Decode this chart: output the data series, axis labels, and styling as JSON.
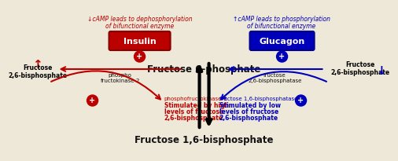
{
  "bg_color": "#ede8d8",
  "red_color": "#bb0000",
  "blue_color": "#0000bb",
  "dark_color": "#111111",
  "f6p_label": "Fructose 6-phosphate",
  "f16bp_label": "Fructose 1,6-bisphosphate",
  "insulin_label": "Insulin",
  "glucagon_label": "Glucagon",
  "left_fruct_label": "Fructose\n2,6-bisphosphate",
  "right_fruct_label": "Fructose\n2,6-bisphosphate",
  "camp_left_1": "↓cAMP leads to dephosphorylation",
  "camp_left_2": "of bifunctional enzyme",
  "camp_right_1": "↑cAMP leads to phosphorylation",
  "camp_right_2": "of bifunctional enzyme",
  "phospho_label": "phospho\nfructokinase-2",
  "fruct_bisphosphatase_label": "fructose\n2,6-bisphosphatase",
  "pfk1_line1": "phosphofructokinase-1",
  "pfk1_line2": "Stimulated by high",
  "pfk1_line3": "levels of fructose",
  "pfk1_line4": "2,6-bisphosphate",
  "fbp_line1": "fructose 1,6-bisphosphatase",
  "fbp_line2": "Stimulated by low",
  "fbp_line3": "levels of fructose",
  "fbp_line4": "2,6-bisphosphate"
}
